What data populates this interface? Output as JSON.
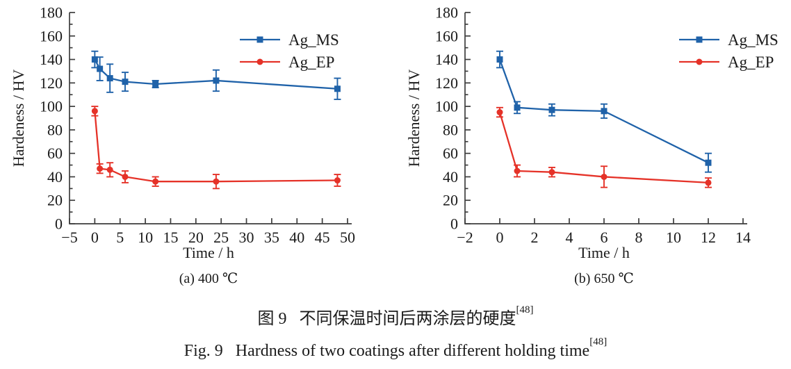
{
  "figure": {
    "caption_zh": {
      "prefix": "图 9",
      "text": "不同保温时间后两涂层的硬度",
      "ref": "[48]"
    },
    "caption_en": {
      "prefix": "Fig. 9",
      "text": "Hardness of two coatings after different holding time",
      "ref": "[48]"
    }
  },
  "colors": {
    "ag_ms": "#1f62a9",
    "ag_ep": "#e53228",
    "axis": "#3d3d3d",
    "text": "#1a1a1a"
  },
  "chart_data": [
    {
      "type": "line",
      "subtitle": "(a) 400 ℃",
      "xlabel": "Time / h",
      "ylabel": "Hardeness / HV",
      "xlim": [
        -5,
        50
      ],
      "ylim": [
        0,
        180
      ],
      "xticks": [
        -5,
        0,
        5,
        10,
        15,
        20,
        25,
        30,
        35,
        40,
        45,
        50
      ],
      "yticks": [
        0,
        20,
        40,
        60,
        80,
        100,
        120,
        140,
        160,
        180
      ],
      "ytick_minor_step": 10,
      "grid": false,
      "legend_position": "top-right",
      "series": [
        {
          "name": "Ag_MS",
          "color_key": "ag_ms",
          "marker": "square",
          "x": [
            0,
            1,
            3,
            6,
            12,
            24,
            48
          ],
          "y": [
            140,
            132,
            124,
            121,
            119,
            122,
            115
          ],
          "yerr": [
            7,
            10,
            12,
            8,
            3,
            9,
            9
          ]
        },
        {
          "name": "Ag_EP",
          "color_key": "ag_ep",
          "marker": "circle",
          "x": [
            0,
            1,
            3,
            6,
            12,
            24,
            48
          ],
          "y": [
            96,
            47,
            46,
            40,
            36,
            36,
            37
          ],
          "yerr": [
            4,
            4,
            6,
            5,
            4,
            6,
            5
          ]
        }
      ]
    },
    {
      "type": "line",
      "subtitle": "(b) 650 ℃",
      "xlabel": "Time / h",
      "ylabel": "Hardeness / HV",
      "xlim": [
        -2,
        14
      ],
      "ylim": [
        0,
        180
      ],
      "xticks": [
        -2,
        0,
        2,
        4,
        6,
        8,
        10,
        12,
        14
      ],
      "yticks": [
        0,
        20,
        40,
        60,
        80,
        100,
        120,
        140,
        160,
        180
      ],
      "ytick_minor_step": 10,
      "grid": false,
      "legend_position": "top-right",
      "series": [
        {
          "name": "Ag_MS",
          "color_key": "ag_ms",
          "marker": "square",
          "x": [
            0,
            1,
            3,
            6,
            12
          ],
          "y": [
            140,
            99,
            97,
            96,
            52
          ],
          "yerr": [
            7,
            5,
            5,
            6,
            8
          ]
        },
        {
          "name": "Ag_EP",
          "color_key": "ag_ep",
          "marker": "circle",
          "x": [
            0,
            1,
            3,
            6,
            12
          ],
          "y": [
            95,
            45,
            44,
            40,
            35
          ],
          "yerr": [
            4,
            5,
            4,
            9,
            4
          ]
        }
      ]
    }
  ]
}
